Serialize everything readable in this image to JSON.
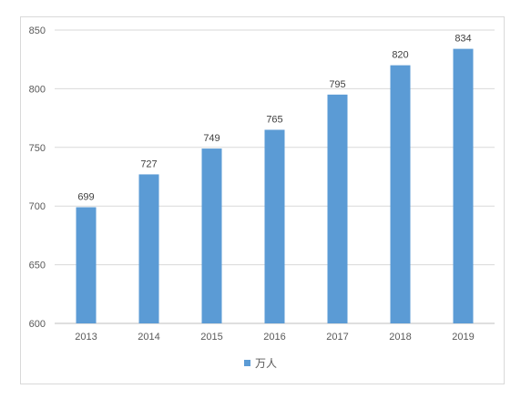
{
  "chart_data": {
    "type": "bar",
    "categories": [
      "2013",
      "2014",
      "2015",
      "2016",
      "2017",
      "2018",
      "2019"
    ],
    "series": [
      {
        "name": "万人",
        "values": [
          699,
          727,
          749,
          765,
          795,
          820,
          834
        ]
      }
    ],
    "y_ticks": [
      "600",
      "650",
      "700",
      "750",
      "800",
      "850"
    ],
    "ylim": [
      600,
      850
    ],
    "grid": true,
    "legend": "bottom",
    "title": "",
    "xlabel": "",
    "ylabel": "",
    "bar_color": "#5B9BD5"
  }
}
